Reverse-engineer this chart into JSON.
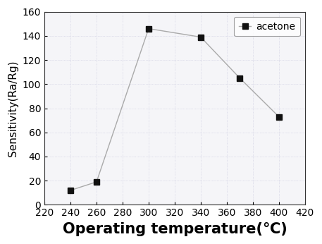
{
  "x": [
    240,
    260,
    300,
    340,
    370,
    400
  ],
  "y": [
    12,
    19,
    146,
    139,
    105,
    73
  ],
  "line_color": "#aaaaaa",
  "marker_color": "#111111",
  "marker": "s",
  "marker_size": 6,
  "legend_label": "acetone",
  "xlabel": "Operating temperature(℃)",
  "ylabel": "Sensitivity(Ra/Rg)",
  "xlim": [
    220,
    420
  ],
  "ylim": [
    0,
    160
  ],
  "xticks": [
    220,
    240,
    260,
    280,
    300,
    320,
    340,
    360,
    380,
    400,
    420
  ],
  "yticks": [
    0,
    20,
    40,
    60,
    80,
    100,
    120,
    140,
    160
  ],
  "xlabel_fontsize": 15,
  "ylabel_fontsize": 11,
  "tick_fontsize": 10,
  "legend_fontsize": 10,
  "bg_color": "#f5f5f8",
  "figure_bg": "#ffffff"
}
